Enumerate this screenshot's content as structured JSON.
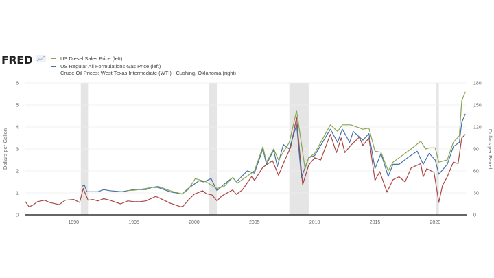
{
  "logo": "FRED",
  "chart_data": {
    "type": "line",
    "title": "",
    "ylabel_left": "Dollars per Gallon",
    "ylabel_right": "Dollars per Barrel",
    "xlim": [
      1986.0,
      2022.6
    ],
    "ylim_left": [
      0,
      6
    ],
    "ylim_right": [
      0,
      180
    ],
    "x_ticks": [
      "1990",
      "1995",
      "2000",
      "2005",
      "2010",
      "2015",
      "2020"
    ],
    "y_ticks_left": [
      "0",
      "1",
      "2",
      "3",
      "4",
      "5",
      "6"
    ],
    "y_ticks_right": [
      "0",
      "30",
      "60",
      "90",
      "120",
      "150",
      "180"
    ],
    "grid": true,
    "legend_position": "top-left",
    "recessions": [
      [
        1990.6,
        1991.2
      ],
      [
        2001.2,
        2001.9
      ],
      [
        2007.9,
        2009.5
      ],
      [
        2020.1,
        2020.3
      ]
    ],
    "series": [
      {
        "name": "US Diesel Sales Price (left)",
        "axis": "left",
        "color": "#89a54e",
        "x": [
          1994.3,
          1995,
          1996,
          1997,
          1998,
          1999,
          1999.5,
          2000.1,
          2001,
          2001.9,
          2002.5,
          2003.2,
          2003.6,
          2004.5,
          2005,
          2005.7,
          2006,
          2006.6,
          2007,
          2007.9,
          2008.5,
          2009.2,
          2009.5,
          2010,
          2011.3,
          2011.9,
          2012.3,
          2013,
          2014,
          2014.5,
          2015,
          2015.5,
          2016.1,
          2016.5,
          2017,
          2018,
          2018.8,
          2019.2,
          2019.5,
          2020,
          2020.3,
          2021,
          2021.5,
          2022,
          2022.2,
          2022.5
        ],
        "y": [
          1.1,
          1.12,
          1.2,
          1.3,
          1.1,
          0.95,
          1.15,
          1.65,
          1.5,
          1.2,
          1.3,
          1.7,
          1.45,
          1.8,
          2.0,
          3.1,
          2.4,
          3.0,
          2.5,
          3.3,
          4.75,
          2.1,
          2.6,
          2.8,
          4.1,
          3.8,
          4.1,
          4.1,
          3.9,
          3.95,
          2.9,
          2.85,
          2.0,
          2.4,
          2.6,
          3.0,
          3.35,
          3.0,
          3.05,
          3.05,
          2.4,
          2.5,
          3.3,
          3.6,
          5.2,
          5.6
        ]
      },
      {
        "name": "US Regular All Formulations Gas Price (left)",
        "axis": "left",
        "color": "#4572a7",
        "x": [
          1990.7,
          1990.9,
          1991.1,
          1992,
          1992.5,
          1993,
          1994,
          1995,
          1996,
          1996.5,
          1997,
          1998,
          1999,
          1999.5,
          2000.4,
          2000.8,
          2001.4,
          2001.9,
          2002.5,
          2003.2,
          2003.5,
          2004.4,
          2005,
          2005.7,
          2006,
          2006.6,
          2006.9,
          2007.4,
          2007.9,
          2008.5,
          2008.9,
          2009.5,
          2010,
          2011.3,
          2011.9,
          2012.3,
          2012.9,
          2013.2,
          2014,
          2014.5,
          2015,
          2015.5,
          2016.1,
          2016.5,
          2017,
          2017.7,
          2018.5,
          2019,
          2019.5,
          2020,
          2020.3,
          2021,
          2021.5,
          2022,
          2022.2,
          2022.5
        ],
        "y": [
          1.3,
          1.35,
          1.05,
          1.05,
          1.15,
          1.1,
          1.05,
          1.15,
          1.15,
          1.25,
          1.25,
          1.05,
          0.95,
          1.2,
          1.55,
          1.5,
          1.65,
          1.1,
          1.4,
          1.7,
          1.5,
          2.0,
          1.9,
          3.0,
          2.3,
          2.95,
          2.2,
          3.2,
          3.0,
          4.1,
          1.7,
          2.6,
          2.7,
          3.9,
          3.3,
          3.9,
          3.3,
          3.8,
          3.4,
          3.7,
          2.1,
          2.8,
          1.75,
          2.3,
          2.3,
          2.6,
          2.9,
          2.3,
          2.8,
          2.5,
          1.85,
          2.3,
          3.1,
          3.3,
          4.2,
          4.6
        ]
      },
      {
        "name": "Crude Oil Prices: West Texas Intermediate (WTI) - Cushing, Oklahoma (right)",
        "axis": "right",
        "color": "#aa4643",
        "x": [
          1986.0,
          1986.3,
          1986.6,
          1987,
          1987.6,
          1988,
          1988.8,
          1989.3,
          1990,
          1990.5,
          1990.8,
          1991.2,
          1991.6,
          1992,
          1992.5,
          1993,
          1993.9,
          1994.5,
          1995,
          1995.5,
          1996,
          1996.8,
          1997,
          1997.5,
          1998,
          1998.9,
          1999.1,
          1999.5,
          2000,
          2000.7,
          2001,
          2001.5,
          2001.9,
          2002.3,
          2003.2,
          2003.5,
          2004,
          2004.8,
          2005,
          2005.7,
          2006.5,
          2007,
          2007.5,
          2008,
          2008.5,
          2009,
          2009.5,
          2010,
          2010.5,
          2011.3,
          2011.8,
          2012.2,
          2012.5,
          2013,
          2013.7,
          2014,
          2014.5,
          2015,
          2015.4,
          2016,
          2016.5,
          2017,
          2017.5,
          2018,
          2018.8,
          2019,
          2019.3,
          2019.9,
          2020.3,
          2020.6,
          2021,
          2021.5,
          2021.9,
          2022.2,
          2022.5
        ],
        "y": [
          18,
          11,
          13,
          18,
          20,
          17,
          14,
          20,
          21,
          17,
          36,
          20,
          21,
          19,
          22,
          20,
          15,
          19,
          18,
          18,
          19,
          25,
          24,
          20,
          16,
          11,
          12,
          20,
          28,
          33,
          29,
          27,
          19,
          26,
          34,
          28,
          34,
          53,
          47,
          65,
          74,
          54,
          74,
          92,
          133,
          41,
          68,
          78,
          75,
          110,
          85,
          105,
          85,
          95,
          106,
          95,
          105,
          47,
          59,
          31,
          48,
          52,
          45,
          64,
          70,
          52,
          63,
          58,
          17,
          40,
          52,
          72,
          70,
          105,
          110
        ]
      }
    ]
  }
}
